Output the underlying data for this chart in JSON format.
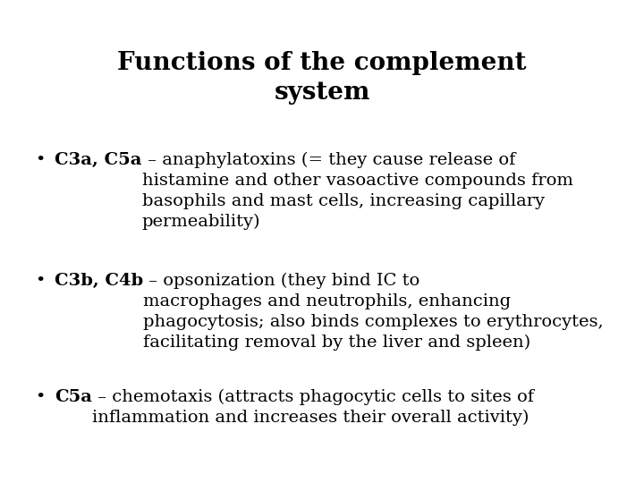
{
  "title_line1": "Functions of the complement",
  "title_line2": "system",
  "bullets": [
    {
      "bold": "C3a, C5a",
      "normal": " – anaphylatoxins (= they cause release of\nhistamine and other vasoactive compounds from\nbasophils and mast cells, increasing capillary\npermeability)"
    },
    {
      "bold": "C3b, C4b",
      "normal": " – opsonization (they bind IC to\nmacrophages and neutrophils, enhancing\nphagocytosis; also binds complexes to erythrocytes,\nfacilitating removal by the liver and spleen)"
    },
    {
      "bold": "C5a",
      "normal": " – chemotaxis (attracts phagocytic cells to sites of\ninflammation and increases their overall activity)"
    }
  ],
  "bg_color": "#ffffff",
  "text_color": "#000000",
  "title_fontsize": 20,
  "body_fontsize": 14,
  "font_family": "serif"
}
